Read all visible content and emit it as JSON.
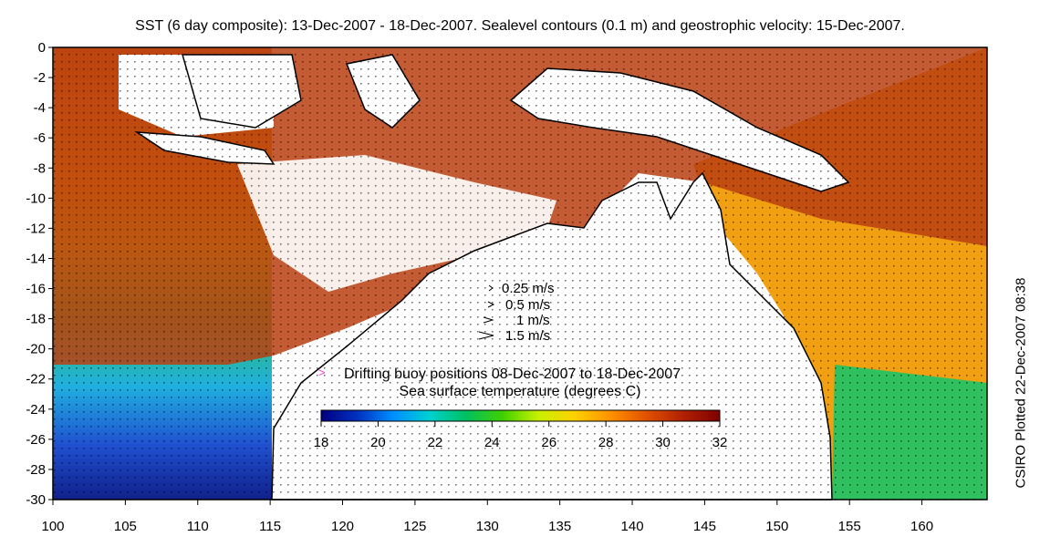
{
  "title": "SST (6 day composite): 13-Dec-2007 - 18-Dec-2007. Sealevel contours (0.1 m) and geostrophic velocity: 15-Dec-2007.",
  "side_label": "CSIRO Plotted 22-Dec-2007 08:38",
  "x_axis": {
    "ticks": [
      100,
      105,
      110,
      115,
      120,
      125,
      130,
      135,
      140,
      145,
      150,
      155,
      160
    ],
    "range": [
      100,
      164.5
    ]
  },
  "y_axis": {
    "ticks": [
      0,
      -2,
      -4,
      -6,
      -8,
      -10,
      -12,
      -14,
      -16,
      -18,
      -20,
      -22,
      -24,
      -26,
      -28,
      -30
    ],
    "range": [
      -30,
      0
    ]
  },
  "velocity_legend": [
    "0.25 m/s",
    "0.5 m/s",
    "1 m/s",
    "1.5 m/s"
  ],
  "buoy_legend": "Drifting buoy positions 08-Dec-2007 to 18-Dec-2007",
  "buoy_color": "#ff33cc",
  "colorbar": {
    "label": "Sea surface temperature (degrees C)",
    "ticks": [
      18,
      20,
      22,
      24,
      26,
      28,
      30,
      32
    ],
    "range": [
      18,
      32
    ],
    "colors": [
      "#000080",
      "#0030c0",
      "#0090ff",
      "#00d0d0",
      "#00c060",
      "#40d000",
      "#c8f000",
      "#ffd000",
      "#ff9000",
      "#e05000",
      "#b02000",
      "#800000"
    ]
  }
}
